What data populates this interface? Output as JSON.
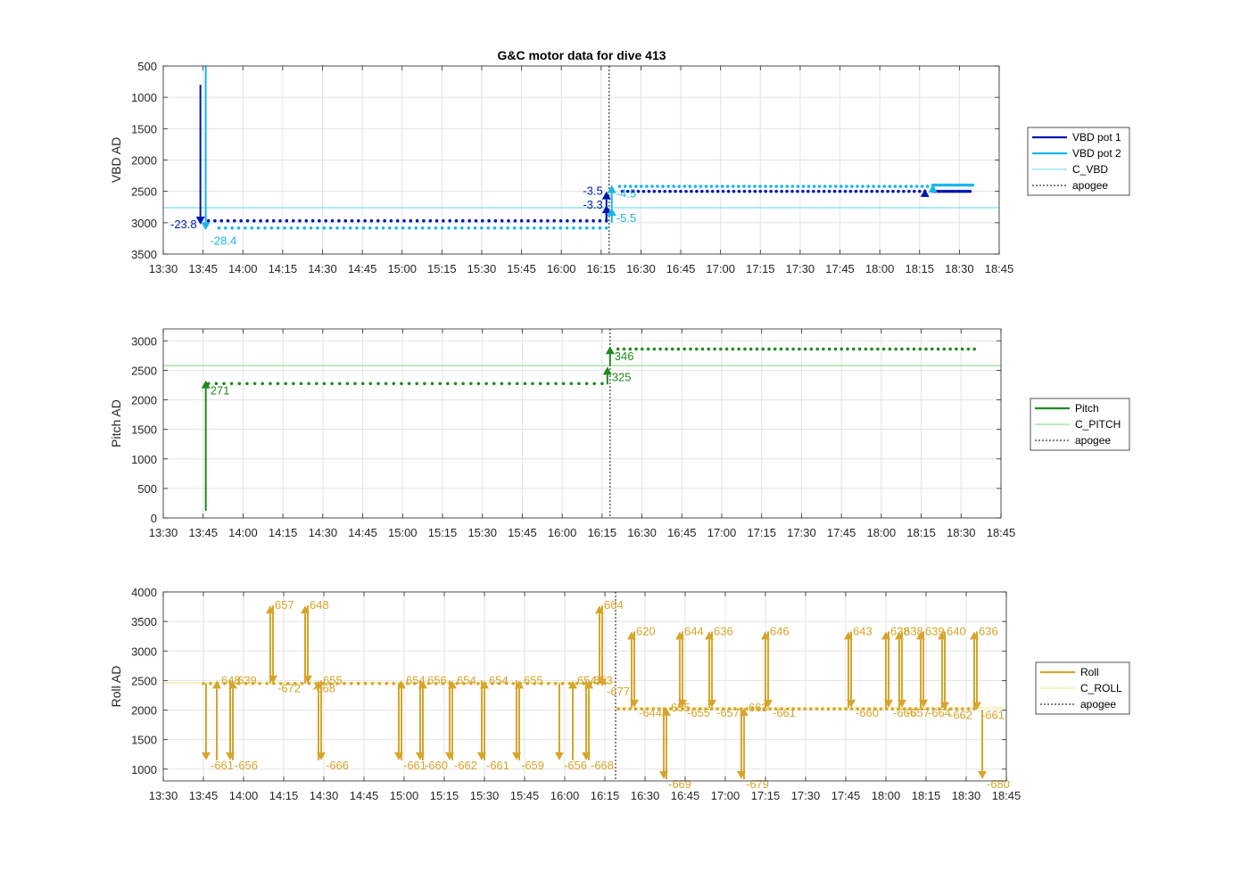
{
  "figure": {
    "title": "G&C motor data for dive 413"
  },
  "colors": {
    "vbd1": "#0016b0",
    "vbd2": "#17b6e8",
    "cvbd": "#5fd6e6",
    "pitch": "#1f8a1f",
    "cpitch": "#7fd47f",
    "roll": "#d6a52b",
    "croll": "#eeea7a",
    "apogee": "#555555",
    "grid": "#e3e3e3",
    "axis": "#262626"
  },
  "chart_data": [
    {
      "type": "scatter",
      "name": "vbd",
      "title": "G&C motor data for dive 413",
      "ylabel": "VBD AD",
      "xlabel": "",
      "x_ticks": [
        "13:30",
        "13:45",
        "14:00",
        "14:15",
        "14:30",
        "14:45",
        "15:00",
        "15:15",
        "15:30",
        "15:45",
        "16:00",
        "16:15",
        "16:30",
        "16:45",
        "17:00",
        "17:15",
        "17:30",
        "17:45",
        "18:00",
        "18:15",
        "18:30",
        "18:45"
      ],
      "x_range": [
        "13:30",
        "18:45"
      ],
      "ylim": [
        500,
        3500
      ],
      "y_reversed": true,
      "y_ticks": [
        500,
        1000,
        1500,
        2000,
        2500,
        3000,
        3500
      ],
      "grid": true,
      "legend": {
        "placement": "right",
        "entries": [
          {
            "label": "VBD pot 1",
            "style": "line",
            "color_key": "vbd1"
          },
          {
            "label": "VBD pot 2",
            "style": "line",
            "color_key": "vbd2"
          },
          {
            "label": "C_VBD",
            "style": "thin",
            "color_key": "cvbd"
          },
          {
            "label": "apogee",
            "style": "dotted",
            "color_key": "apogee"
          }
        ]
      },
      "apogee": "16:18",
      "constant_line": {
        "name": "C_VBD",
        "value": 2760
      },
      "series": [
        {
          "name": "VBD pot 1",
          "segments": [
            {
              "t_start": "13:47",
              "t_end": "16:17",
              "value": 2970,
              "count": 62
            },
            {
              "t_start": "16:23",
              "t_end": "18:17",
              "value": 2500,
              "count": 58
            },
            {
              "t_start": "18:20",
              "t_end": "18:34",
              "value": 2500,
              "count": 18
            }
          ]
        },
        {
          "name": "VBD pot 2",
          "segments": [
            {
              "t_start": "13:51",
              "t_end": "16:17",
              "value": 3085,
              "count": 60
            },
            {
              "t_start": "16:22",
              "t_end": "18:18",
              "value": 2420,
              "count": 58
            },
            {
              "t_start": "18:20",
              "t_end": "18:35",
              "value": 2400,
              "count": 18
            }
          ]
        }
      ],
      "events": [
        {
          "series": "VBD pot 1",
          "t": "13:44",
          "from": 800,
          "to": 3030,
          "label": "-23.8",
          "label_side": "left"
        },
        {
          "series": "VBD pot 2",
          "t": "13:46",
          "from": 500,
          "to": 3120,
          "label": "-28.4",
          "label_side": "right-below"
        },
        {
          "series": "VBD pot 1",
          "t": "16:17",
          "from": 2990,
          "to": 2500,
          "label": "-3.5",
          "label_side": "left"
        },
        {
          "series": "VBD pot 1",
          "t": "16:17",
          "from": 2990,
          "to": 2720,
          "label": "-3.3",
          "label_side": "left"
        },
        {
          "series": "VBD pot 2",
          "t": "16:19",
          "from": 2760,
          "to": 2400,
          "label": "-4.5",
          "label_side": "right"
        },
        {
          "series": "VBD pot 2",
          "t": "16:19",
          "from": 3000,
          "to": 2760,
          "label": "-5.5",
          "label_side": "right-below"
        },
        {
          "series": "VBD pot 2",
          "t": "18:20",
          "from": 2450,
          "to": 2390,
          "label": "",
          "label_side": "none"
        },
        {
          "series": "VBD pot 1",
          "t": "18:17",
          "from": 2520,
          "to": 2460,
          "label": "",
          "label_side": "none"
        }
      ]
    },
    {
      "type": "scatter",
      "name": "pitch",
      "ylabel": "Pitch AD",
      "xlabel": "",
      "x_ticks": [
        "13:30",
        "13:45",
        "14:00",
        "14:15",
        "14:30",
        "14:45",
        "15:00",
        "15:15",
        "15:30",
        "15:45",
        "16:00",
        "16:15",
        "16:30",
        "16:45",
        "17:00",
        "17:15",
        "17:30",
        "17:45",
        "18:00",
        "18:15",
        "18:30",
        "18:45"
      ],
      "x_range": [
        "13:30",
        "18:45"
      ],
      "ylim": [
        0,
        3200
      ],
      "y_reversed": false,
      "y_ticks": [
        0,
        500,
        1000,
        1500,
        2000,
        2500,
        3000
      ],
      "grid": true,
      "legend": {
        "placement": "right",
        "entries": [
          {
            "label": "Pitch",
            "style": "line",
            "color_key": "pitch"
          },
          {
            "label": "C_PITCH",
            "style": "thin",
            "color_key": "cpitch"
          },
          {
            "label": "apogee",
            "style": "dotted",
            "color_key": "apogee"
          }
        ]
      },
      "apogee": "16:18",
      "constant_line": {
        "name": "C_PITCH",
        "value": 2580
      },
      "series": [
        {
          "name": "Pitch",
          "segments": [
            {
              "t_start": "13:47",
              "t_end": "16:15",
              "value": 2275,
              "count": 52
            },
            {
              "t_start": "16:21",
              "t_end": "18:35",
              "value": 2860,
              "count": 60
            }
          ]
        }
      ],
      "events": [
        {
          "series": "Pitch",
          "t": "13:46",
          "from": 120,
          "to": 2330,
          "label": "271",
          "label_side": "right-below"
        },
        {
          "series": "Pitch",
          "t": "16:17",
          "from": 2260,
          "to": 2560,
          "label": "325",
          "label_side": "right-below"
        },
        {
          "series": "Pitch",
          "t": "16:18",
          "from": 2580,
          "to": 2910,
          "label": "346",
          "label_side": "right-below"
        }
      ]
    },
    {
      "type": "scatter",
      "name": "roll",
      "ylabel": "Roll AD",
      "xlabel": "",
      "x_ticks": [
        "13:30",
        "13:45",
        "14:00",
        "14:15",
        "14:30",
        "14:45",
        "15:00",
        "15:15",
        "15:30",
        "15:45",
        "16:00",
        "16:15",
        "16:30",
        "16:45",
        "17:00",
        "17:15",
        "17:30",
        "17:45",
        "18:00",
        "18:15",
        "18:30",
        "18:45"
      ],
      "x_range": [
        "13:30",
        "18:45"
      ],
      "ylim": [
        800,
        4000
      ],
      "y_reversed": false,
      "y_ticks": [
        1000,
        1500,
        2000,
        2500,
        3000,
        3500,
        4000
      ],
      "grid": true,
      "legend": {
        "placement": "right",
        "entries": [
          {
            "label": "Roll",
            "style": "line",
            "color_key": "roll"
          },
          {
            "label": "C_ROLL",
            "style": "thin",
            "color_key": "croll"
          },
          {
            "label": "apogee",
            "style": "dotted",
            "color_key": "apogee"
          }
        ]
      },
      "apogee": "16:19",
      "constant_lines": [
        {
          "name": "C_ROLL",
          "value": 2460,
          "t_start": "13:30",
          "t_end": "16:19"
        },
        {
          "name": "C_ROLL",
          "value": 2040,
          "t_start": "16:19",
          "t_end": "18:45"
        }
      ],
      "series": [
        {
          "name": "Roll",
          "segments": [
            {
              "t_start": "13:45",
              "t_end": "16:15",
              "value": 2450,
              "count": 58
            },
            {
              "t_start": "16:20",
              "t_end": "18:33",
              "value": 2020,
              "count": 62
            }
          ]
        }
      ],
      "events": [
        {
          "t": "13:46",
          "from": 2450,
          "to": 1150,
          "label": "-661",
          "label_pos": "bottom-right"
        },
        {
          "t": "13:50",
          "from": 1150,
          "to": 2500,
          "label": "648",
          "label_pos": "top-right"
        },
        {
          "t": "13:55",
          "from": 2500,
          "to": 1150,
          "label": "-656",
          "label_pos": "bottom-right"
        },
        {
          "t": "13:56",
          "from": 1150,
          "to": 2500,
          "label": "639",
          "label_pos": "top-right"
        },
        {
          "t": "14:10",
          "from": 2450,
          "to": 3770,
          "label": "657",
          "label_pos": "top-right"
        },
        {
          "t": "14:11",
          "from": 3770,
          "to": 2450,
          "label": "-672",
          "label_pos": "bottom-right"
        },
        {
          "t": "14:23",
          "from": 2450,
          "to": 3770,
          "label": "648",
          "label_pos": "top-right"
        },
        {
          "t": "14:24",
          "from": 3770,
          "to": 2450,
          "label": "-668",
          "label_pos": "bottom-right"
        },
        {
          "t": "14:28",
          "from": 1150,
          "to": 2500,
          "label": "655",
          "label_pos": "top-right"
        },
        {
          "t": "14:29",
          "from": 2500,
          "to": 1150,
          "label": "-666",
          "label_pos": "bottom-right"
        },
        {
          "t": "14:58",
          "from": 2450,
          "to": 1150,
          "label": "-661",
          "label_pos": "bottom-right"
        },
        {
          "t": "14:59",
          "from": 1150,
          "to": 2500,
          "label": "654",
          "label_pos": "top-right"
        },
        {
          "t": "15:06",
          "from": 2500,
          "to": 1150,
          "label": "-660",
          "label_pos": "bottom-right"
        },
        {
          "t": "15:07",
          "from": 1150,
          "to": 2500,
          "label": "656",
          "label_pos": "top-right"
        },
        {
          "t": "15:17",
          "from": 2500,
          "to": 1150,
          "label": "-662",
          "label_pos": "bottom-right"
        },
        {
          "t": "15:18",
          "from": 1150,
          "to": 2500,
          "label": "654",
          "label_pos": "top-right"
        },
        {
          "t": "15:29",
          "from": 2500,
          "to": 1150,
          "label": "-661",
          "label_pos": "bottom-right"
        },
        {
          "t": "15:30",
          "from": 1150,
          "to": 2500,
          "label": "654",
          "label_pos": "top-right"
        },
        {
          "t": "15:42",
          "from": 2500,
          "to": 1150,
          "label": "-659",
          "label_pos": "bottom-right"
        },
        {
          "t": "15:43",
          "from": 1150,
          "to": 2500,
          "label": "655",
          "label_pos": "top-right"
        },
        {
          "t": "15:58",
          "from": 2450,
          "to": 1150,
          "label": "-656",
          "label_pos": "bottom-right"
        },
        {
          "t": "16:03",
          "from": 1150,
          "to": 2500,
          "label": "654",
          "label_pos": "top-right"
        },
        {
          "t": "16:08",
          "from": 2500,
          "to": 1150,
          "label": "-668",
          "label_pos": "bottom-right"
        },
        {
          "t": "16:09",
          "from": 1150,
          "to": 2500,
          "label": "653",
          "label_pos": "top-right"
        },
        {
          "t": "16:13",
          "from": 2450,
          "to": 3770,
          "label": "664",
          "label_pos": "top-right"
        },
        {
          "t": "16:14",
          "from": 3770,
          "to": 2400,
          "label": "-677",
          "label_pos": "bottom-right"
        },
        {
          "t": "16:25",
          "from": 2040,
          "to": 3330,
          "label": "620",
          "label_pos": "top-right"
        },
        {
          "t": "16:26",
          "from": 3330,
          "to": 2040,
          "label": "-644",
          "label_pos": "bottom-right"
        },
        {
          "t": "16:37",
          "from": 2040,
          "to": 830,
          "label": "-669",
          "label_pos": "bottom-right"
        },
        {
          "t": "16:38",
          "from": 830,
          "to": 2040,
          "label": "655",
          "label_pos": "top-right"
        },
        {
          "t": "16:43",
          "from": 2040,
          "to": 3330,
          "label": "644",
          "label_pos": "top-right"
        },
        {
          "t": "16:44",
          "from": 3330,
          "to": 2040,
          "label": "-655",
          "label_pos": "bottom-right"
        },
        {
          "t": "16:54",
          "from": 2040,
          "to": 3330,
          "label": "636",
          "label_pos": "top-right"
        },
        {
          "t": "16:55",
          "from": 3330,
          "to": 2040,
          "label": "-657",
          "label_pos": "bottom-right"
        },
        {
          "t": "17:06",
          "from": 2040,
          "to": 830,
          "label": "-679",
          "label_pos": "bottom-right"
        },
        {
          "t": "17:07",
          "from": 830,
          "to": 2040,
          "label": "663",
          "label_pos": "top-right"
        },
        {
          "t": "17:15",
          "from": 2040,
          "to": 3330,
          "label": "646",
          "label_pos": "top-right"
        },
        {
          "t": "17:16",
          "from": 3330,
          "to": 2040,
          "label": "-661",
          "label_pos": "bottom-right"
        },
        {
          "t": "17:46",
          "from": 2040,
          "to": 3330,
          "label": "643",
          "label_pos": "top-right"
        },
        {
          "t": "17:47",
          "from": 3330,
          "to": 2040,
          "label": "-660",
          "label_pos": "bottom-right"
        },
        {
          "t": "18:00",
          "from": 2040,
          "to": 3330,
          "label": "638",
          "label_pos": "top-right"
        },
        {
          "t": "18:01",
          "from": 3330,
          "to": 2040,
          "label": "-666",
          "label_pos": "bottom-right"
        },
        {
          "t": "18:05",
          "from": 2040,
          "to": 3330,
          "label": "638",
          "label_pos": "top-right"
        },
        {
          "t": "18:06",
          "from": 3330,
          "to": 2040,
          "label": "-657",
          "label_pos": "bottom-right"
        },
        {
          "t": "18:13",
          "from": 2040,
          "to": 3330,
          "label": "639",
          "label_pos": "top-right"
        },
        {
          "t": "18:14",
          "from": 3330,
          "to": 2040,
          "label": "-664",
          "label_pos": "bottom-right"
        },
        {
          "t": "18:21",
          "from": 2040,
          "to": 3330,
          "label": "640",
          "label_pos": "top-right"
        },
        {
          "t": "18:22",
          "from": 3330,
          "to": 2000,
          "label": "-662",
          "label_pos": "bottom-right"
        },
        {
          "t": "18:33",
          "from": 2000,
          "to": 3330,
          "label": "636",
          "label_pos": "top-right"
        },
        {
          "t": "18:34",
          "from": 3330,
          "to": 2000,
          "label": "-661",
          "label_pos": "bottom-right"
        },
        {
          "t": "18:36",
          "from": 2000,
          "to": 830,
          "label": "-680",
          "label_pos": "bottom-right"
        }
      ]
    }
  ]
}
